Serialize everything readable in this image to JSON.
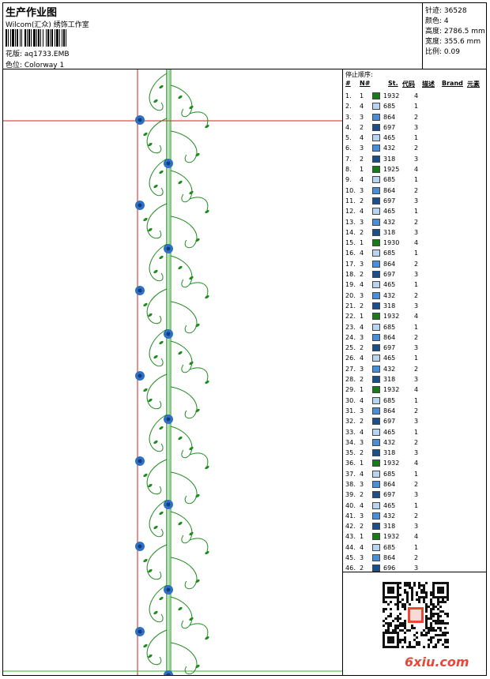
{
  "header": {
    "title": "生产作业图",
    "company": "Wilcom(汇众) 绣饰工作室",
    "design_label": "花版: aq1733.EMB",
    "colorway_label": "色位: Colorway 1"
  },
  "stats": [
    {
      "label": "针迹:",
      "value": "36528"
    },
    {
      "label": "颜色:",
      "value": "4"
    },
    {
      "label": "高度:",
      "value": "2786.5 mm"
    },
    {
      "label": "宽度:",
      "value": "355.6 mm"
    },
    {
      "label": "比例:",
      "value": "0.09"
    }
  ],
  "stop_sequence": {
    "title": "停止顺序:",
    "headers": {
      "num": "#",
      "n": "N#",
      "st": "St.",
      "code": "代码",
      "desc": "描述",
      "brand": "Brand",
      "element": "元素"
    },
    "rows": [
      {
        "i": "1.",
        "n": "1",
        "color": "#1a7a1a",
        "code": "1932",
        "el": "4"
      },
      {
        "i": "2.",
        "n": "4",
        "color": "#b9d4ef",
        "code": "685",
        "el": "1"
      },
      {
        "i": "3.",
        "n": "3",
        "color": "#4a8fd6",
        "code": "864",
        "el": "2"
      },
      {
        "i": "4.",
        "n": "2",
        "color": "#1c4f8a",
        "code": "697",
        "el": "3"
      },
      {
        "i": "5.",
        "n": "4",
        "color": "#b9d4ef",
        "code": "465",
        "el": "1"
      },
      {
        "i": "6.",
        "n": "3",
        "color": "#4a8fd6",
        "code": "432",
        "el": "2"
      },
      {
        "i": "7.",
        "n": "2",
        "color": "#1c4f8a",
        "code": "318",
        "el": "3"
      },
      {
        "i": "8.",
        "n": "1",
        "color": "#1a7a1a",
        "code": "1925",
        "el": "4"
      },
      {
        "i": "9.",
        "n": "4",
        "color": "#b9d4ef",
        "code": "685",
        "el": "1"
      },
      {
        "i": "10.",
        "n": "3",
        "color": "#4a8fd6",
        "code": "864",
        "el": "2"
      },
      {
        "i": "11.",
        "n": "2",
        "color": "#1c4f8a",
        "code": "697",
        "el": "3"
      },
      {
        "i": "12.",
        "n": "4",
        "color": "#b9d4ef",
        "code": "465",
        "el": "1"
      },
      {
        "i": "13.",
        "n": "3",
        "color": "#4a8fd6",
        "code": "432",
        "el": "2"
      },
      {
        "i": "14.",
        "n": "2",
        "color": "#1c4f8a",
        "code": "318",
        "el": "3"
      },
      {
        "i": "15.",
        "n": "1",
        "color": "#1a7a1a",
        "code": "1930",
        "el": "4"
      },
      {
        "i": "16.",
        "n": "4",
        "color": "#b9d4ef",
        "code": "685",
        "el": "1"
      },
      {
        "i": "17.",
        "n": "3",
        "color": "#4a8fd6",
        "code": "864",
        "el": "2"
      },
      {
        "i": "18.",
        "n": "2",
        "color": "#1c4f8a",
        "code": "697",
        "el": "3"
      },
      {
        "i": "19.",
        "n": "4",
        "color": "#b9d4ef",
        "code": "465",
        "el": "1"
      },
      {
        "i": "20.",
        "n": "3",
        "color": "#4a8fd6",
        "code": "432",
        "el": "2"
      },
      {
        "i": "21.",
        "n": "2",
        "color": "#1c4f8a",
        "code": "318",
        "el": "3"
      },
      {
        "i": "22.",
        "n": "1",
        "color": "#1a7a1a",
        "code": "1932",
        "el": "4"
      },
      {
        "i": "23.",
        "n": "4",
        "color": "#b9d4ef",
        "code": "685",
        "el": "1"
      },
      {
        "i": "24.",
        "n": "3",
        "color": "#4a8fd6",
        "code": "864",
        "el": "2"
      },
      {
        "i": "25.",
        "n": "2",
        "color": "#1c4f8a",
        "code": "697",
        "el": "3"
      },
      {
        "i": "26.",
        "n": "4",
        "color": "#b9d4ef",
        "code": "465",
        "el": "1"
      },
      {
        "i": "27.",
        "n": "3",
        "color": "#4a8fd6",
        "code": "432",
        "el": "2"
      },
      {
        "i": "28.",
        "n": "2",
        "color": "#1c4f8a",
        "code": "318",
        "el": "3"
      },
      {
        "i": "29.",
        "n": "1",
        "color": "#1a7a1a",
        "code": "1932",
        "el": "4"
      },
      {
        "i": "30.",
        "n": "4",
        "color": "#b9d4ef",
        "code": "685",
        "el": "1"
      },
      {
        "i": "31.",
        "n": "3",
        "color": "#4a8fd6",
        "code": "864",
        "el": "2"
      },
      {
        "i": "32.",
        "n": "2",
        "color": "#1c4f8a",
        "code": "697",
        "el": "3"
      },
      {
        "i": "33.",
        "n": "4",
        "color": "#b9d4ef",
        "code": "465",
        "el": "1"
      },
      {
        "i": "34.",
        "n": "3",
        "color": "#4a8fd6",
        "code": "432",
        "el": "2"
      },
      {
        "i": "35.",
        "n": "2",
        "color": "#1c4f8a",
        "code": "318",
        "el": "3"
      },
      {
        "i": "36.",
        "n": "1",
        "color": "#1a7a1a",
        "code": "1932",
        "el": "4"
      },
      {
        "i": "37.",
        "n": "4",
        "color": "#b9d4ef",
        "code": "685",
        "el": "1"
      },
      {
        "i": "38.",
        "n": "3",
        "color": "#4a8fd6",
        "code": "864",
        "el": "2"
      },
      {
        "i": "39.",
        "n": "2",
        "color": "#1c4f8a",
        "code": "697",
        "el": "3"
      },
      {
        "i": "40.",
        "n": "4",
        "color": "#b9d4ef",
        "code": "465",
        "el": "1"
      },
      {
        "i": "41.",
        "n": "3",
        "color": "#4a8fd6",
        "code": "432",
        "el": "2"
      },
      {
        "i": "42.",
        "n": "2",
        "color": "#1c4f8a",
        "code": "318",
        "el": "3"
      },
      {
        "i": "43.",
        "n": "1",
        "color": "#1a7a1a",
        "code": "1932",
        "el": "4"
      },
      {
        "i": "44.",
        "n": "4",
        "color": "#b9d4ef",
        "code": "685",
        "el": "1"
      },
      {
        "i": "45.",
        "n": "3",
        "color": "#4a8fd6",
        "code": "864",
        "el": "2"
      },
      {
        "i": "46.",
        "n": "2",
        "color": "#1c4f8a",
        "code": "696",
        "el": "3"
      }
    ]
  },
  "colors": {
    "vine": "#1f8a1f",
    "flower": "#2f6fc4",
    "flower_center": "#0f3f80",
    "crosshair_red": "#d22020",
    "crosshair_green": "#22c022"
  },
  "watermark": {
    "text": "6xiu.com",
    "qr_icon": "qr-code-icon"
  }
}
